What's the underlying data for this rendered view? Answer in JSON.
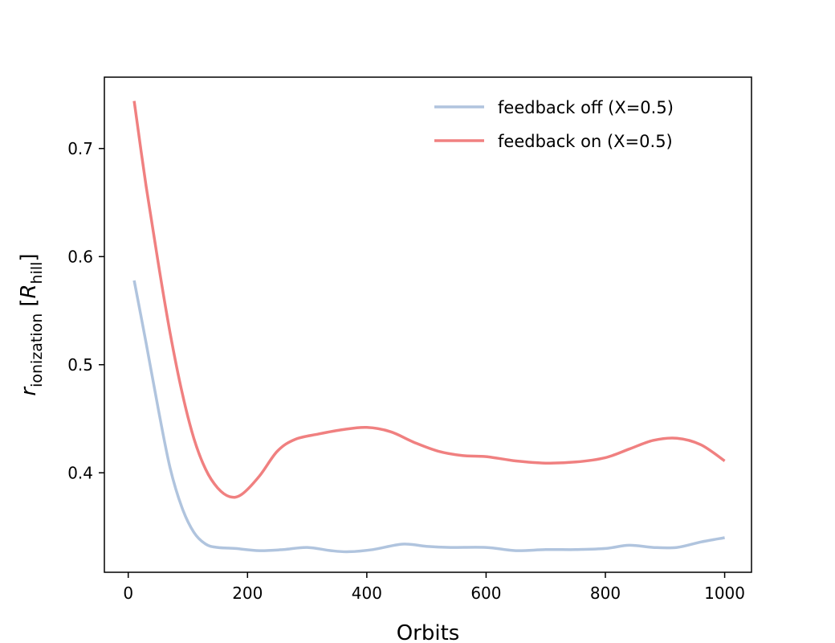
{
  "chart_data": {
    "type": "line",
    "xlabel": "Orbits",
    "ylabel": {
      "symbol": "r",
      "subscript": "ionization",
      "unit_open": "[",
      "unit_symbol": "R",
      "unit_subscript": "hill",
      "unit_close": "]"
    },
    "xlim": [
      -40,
      1045
    ],
    "ylim": [
      0.308,
      0.766
    ],
    "xticks": [
      0,
      200,
      400,
      600,
      800,
      1000
    ],
    "xtick_labels": [
      "0",
      "200",
      "400",
      "600",
      "800",
      "1000"
    ],
    "yticks": [
      0.4,
      0.5,
      0.6,
      0.7
    ],
    "ytick_labels": [
      "0.4",
      "0.5",
      "0.6",
      "0.7"
    ],
    "grid": false,
    "legend_position": "top-right",
    "series": [
      {
        "name": "feedback off (X=0.5)",
        "color": "#b0c4de",
        "points": [
          [
            10,
            0.578
          ],
          [
            30,
            0.52
          ],
          [
            50,
            0.46
          ],
          [
            70,
            0.405
          ],
          [
            90,
            0.368
          ],
          [
            110,
            0.345
          ],
          [
            130,
            0.334
          ],
          [
            150,
            0.331
          ],
          [
            180,
            0.33
          ],
          [
            220,
            0.328
          ],
          [
            260,
            0.329
          ],
          [
            300,
            0.331
          ],
          [
            340,
            0.328
          ],
          [
            370,
            0.327
          ],
          [
            410,
            0.329
          ],
          [
            460,
            0.334
          ],
          [
            500,
            0.332
          ],
          [
            540,
            0.331
          ],
          [
            600,
            0.331
          ],
          [
            650,
            0.328
          ],
          [
            700,
            0.329
          ],
          [
            750,
            0.329
          ],
          [
            800,
            0.33
          ],
          [
            840,
            0.333
          ],
          [
            880,
            0.331
          ],
          [
            920,
            0.331
          ],
          [
            960,
            0.336
          ],
          [
            1000,
            0.34
          ]
        ]
      },
      {
        "name": "feedback on (X=0.5)",
        "color": "#f08080",
        "points": [
          [
            10,
            0.744
          ],
          [
            30,
            0.665
          ],
          [
            50,
            0.595
          ],
          [
            70,
            0.53
          ],
          [
            90,
            0.475
          ],
          [
            110,
            0.432
          ],
          [
            130,
            0.403
          ],
          [
            150,
            0.386
          ],
          [
            170,
            0.378
          ],
          [
            190,
            0.38
          ],
          [
            220,
            0.397
          ],
          [
            250,
            0.42
          ],
          [
            280,
            0.431
          ],
          [
            320,
            0.436
          ],
          [
            360,
            0.44
          ],
          [
            400,
            0.442
          ],
          [
            440,
            0.438
          ],
          [
            480,
            0.428
          ],
          [
            520,
            0.42
          ],
          [
            560,
            0.416
          ],
          [
            600,
            0.415
          ],
          [
            650,
            0.411
          ],
          [
            700,
            0.409
          ],
          [
            750,
            0.41
          ],
          [
            800,
            0.414
          ],
          [
            840,
            0.422
          ],
          [
            880,
            0.43
          ],
          [
            920,
            0.432
          ],
          [
            960,
            0.426
          ],
          [
            1000,
            0.411
          ]
        ]
      }
    ]
  }
}
